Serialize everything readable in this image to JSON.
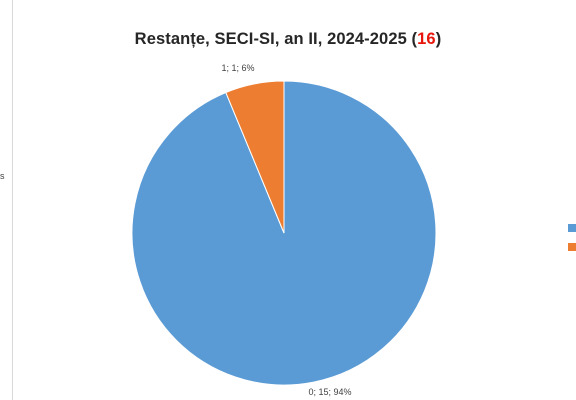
{
  "chart_data": {
    "type": "pie",
    "title_prefix": "Restanțe, SECI-SI, an II, 2024-2025 (",
    "title_count": "16",
    "title_suffix": ")",
    "slices": [
      {
        "category": "0",
        "value": 15,
        "percent": 94,
        "label": "0; 15; 94%",
        "color": "#5b9bd5"
      },
      {
        "category": "1",
        "value": 1,
        "percent": 6,
        "label": "1; 1; 6%",
        "color": "#ed7d31"
      }
    ],
    "legend_placement": "right"
  },
  "left_panel": {
    "stub_text": "s"
  },
  "colors": {
    "count_highlight": "#e8150c",
    "title_text": "#262626"
  }
}
